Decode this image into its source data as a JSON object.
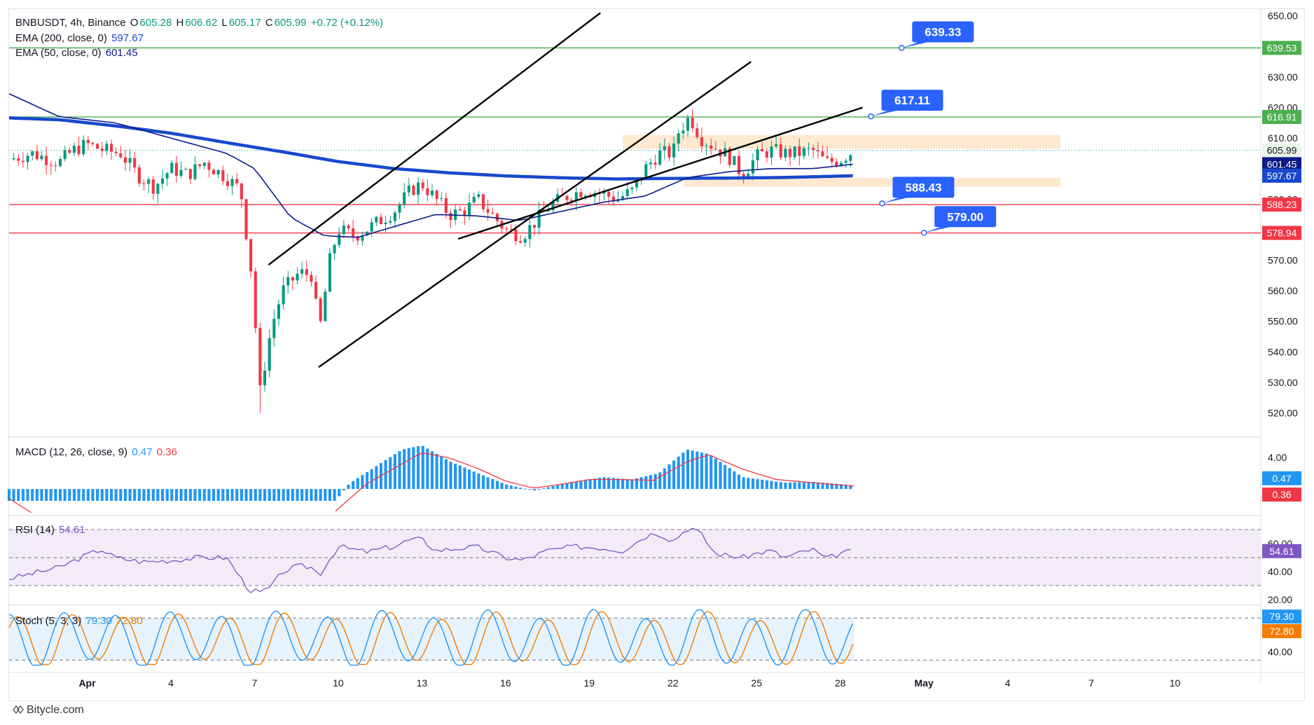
{
  "header": {
    "symbol": "BNBUSDT, 4h, Binance",
    "o_label": "O",
    "o_value": "605.28",
    "h_label": "H",
    "h_value": "606.62",
    "l_label": "L",
    "l_value": "605.17",
    "c_label": "C",
    "c_value": "605.99",
    "change": "+0.72 (+0.12%)"
  },
  "legends": {
    "ema200": "EMA (200, close, 0)",
    "ema200_value": "597.67",
    "ema50": "EMA (50, close, 0)",
    "ema50_value": "601.45",
    "macd": "MACD (12, 26, close, 9)",
    "macd_value": "0.47",
    "macd_signal_value": "0.36",
    "rsi": "RSI (14)",
    "rsi_value": "54.61",
    "stoch": "Stoch (5, 3, 3)",
    "stoch_k_value": "79.30",
    "stoch_d_value": "72.80"
  },
  "footer": {
    "brand": "Bitycle.com"
  },
  "colors": {
    "up": "#089981",
    "down": "#f23645",
    "ema200": "#1848cc",
    "ema50": "#0d1a8a",
    "resistance": "#4caf50",
    "support": "#f23645",
    "callout": "#2962ff",
    "zone": "#fbe3c4",
    "macd_hist": "#2196f3",
    "rsi": "#7e57c2",
    "stoch_k": "#2196f3",
    "stoch_d": "#f57c00"
  },
  "chart_data": {
    "type": "candlestick",
    "title": "BNBUSDT, 4h, Binance",
    "x_ticks": [
      "Apr",
      "4",
      "7",
      "10",
      "13",
      "16",
      "19",
      "22",
      "25",
      "28",
      "May",
      "4",
      "7",
      "10"
    ],
    "x_tick_days": [
      1,
      4,
      7,
      10,
      13,
      16,
      19,
      22,
      25,
      28,
      31,
      34,
      37,
      40
    ],
    "x_start_day": -1.8,
    "x_end_day": 43,
    "last_day": 28.5,
    "price_axis": {
      "ylim": [
        513,
        652
      ],
      "ticks": [
        520,
        530,
        540,
        550,
        560,
        570,
        580,
        590,
        600,
        610,
        620,
        630,
        640,
        650
      ]
    },
    "price_path": [
      [
        -1.8,
        603
      ],
      [
        -1,
        605
      ],
      [
        0,
        602
      ],
      [
        0.5,
        606
      ],
      [
        1,
        608
      ],
      [
        1.6,
        606
      ],
      [
        2.2,
        605
      ],
      [
        2.8,
        598
      ],
      [
        3.4,
        594
      ],
      [
        4,
        600
      ],
      [
        4.6,
        598
      ],
      [
        5.2,
        602
      ],
      [
        6,
        597
      ],
      [
        6.5,
        593
      ],
      [
        6.9,
        565
      ],
      [
        7.2,
        527
      ],
      [
        7.6,
        548
      ],
      [
        8,
        560
      ],
      [
        8.6,
        566
      ],
      [
        9.1,
        565
      ],
      [
        9.3,
        545
      ],
      [
        9.7,
        570
      ],
      [
        10,
        580
      ],
      [
        10.6,
        578
      ],
      [
        11,
        580
      ],
      [
        11.5,
        583
      ],
      [
        12,
        586
      ],
      [
        12.6,
        593
      ],
      [
        13,
        595
      ],
      [
        13.5,
        590
      ],
      [
        14,
        585
      ],
      [
        14.5,
        586
      ],
      [
        15,
        590
      ],
      [
        15.5,
        585
      ],
      [
        16,
        580
      ],
      [
        16.6,
        578
      ],
      [
        17,
        582
      ],
      [
        17.6,
        588
      ],
      [
        18.2,
        591
      ],
      [
        18.8,
        593
      ],
      [
        19.4,
        592
      ],
      [
        20,
        590
      ],
      [
        20.6,
        593
      ],
      [
        21,
        600
      ],
      [
        21.5,
        605
      ],
      [
        22,
        605
      ],
      [
        22.2,
        612
      ],
      [
        22.6,
        617
      ],
      [
        23,
        610
      ],
      [
        23.5,
        607
      ],
      [
        24,
        604
      ],
      [
        24.5,
        598
      ],
      [
        25,
        604
      ],
      [
        25.5,
        606
      ],
      [
        26,
        605
      ],
      [
        26.5,
        605
      ],
      [
        27,
        606
      ],
      [
        27.5,
        602
      ],
      [
        28,
        603
      ],
      [
        28.5,
        606
      ]
    ],
    "price_labels": {
      "high_day": 22.7,
      "high": 619.5,
      "low_day": 7.2,
      "low": 520
    },
    "ema200_path": [
      [
        -1.8,
        616.6
      ],
      [
        0,
        616
      ],
      [
        2,
        614
      ],
      [
        4,
        611.6
      ],
      [
        6,
        608.5
      ],
      [
        8,
        605.5
      ],
      [
        10,
        602.3
      ],
      [
        12,
        600
      ],
      [
        14,
        598.6
      ],
      [
        16,
        597.6
      ],
      [
        18,
        597
      ],
      [
        20,
        596.6
      ],
      [
        22,
        596.8
      ],
      [
        24,
        596.9
      ],
      [
        26,
        597.1
      ],
      [
        28.5,
        597.67
      ]
    ],
    "ema50_path": [
      [
        -1.8,
        624.5
      ],
      [
        0,
        617
      ],
      [
        2,
        615
      ],
      [
        4,
        610
      ],
      [
        6,
        605
      ],
      [
        7,
        600
      ],
      [
        8.3,
        584
      ],
      [
        9.5,
        578
      ],
      [
        10.7,
        577.5
      ],
      [
        12,
        581
      ],
      [
        13.5,
        585
      ],
      [
        15,
        584.5
      ],
      [
        16.5,
        583
      ],
      [
        18,
        586
      ],
      [
        19.5,
        589
      ],
      [
        21,
        591
      ],
      [
        22.5,
        597
      ],
      [
        24,
        599
      ],
      [
        25.5,
        600
      ],
      [
        27,
        600
      ],
      [
        28.5,
        601.45
      ]
    ],
    "horizontal_levels": [
      {
        "value": 639.53,
        "label": "639.53",
        "kind": "resistance"
      },
      {
        "value": 616.91,
        "label": "616.91",
        "kind": "resistance"
      },
      {
        "value": 588.23,
        "label": "588.23",
        "kind": "support"
      },
      {
        "value": 578.94,
        "label": "578.94",
        "kind": "support"
      }
    ],
    "callouts": [
      {
        "label": "639.33",
        "day": 30.2,
        "value": 639.5
      },
      {
        "label": "617.11",
        "day": 29.1,
        "value": 617.1
      },
      {
        "label": "588.43",
        "day": 29.5,
        "value": 588.6
      },
      {
        "label": "579.00",
        "day": 31.0,
        "value": 579.0
      }
    ],
    "price_badges": [
      {
        "label": "605.99",
        "value": 605.99,
        "kind": "current"
      },
      {
        "label": "601.45",
        "value": 601.45,
        "kind": "ema50"
      },
      {
        "label": "597.67",
        "value": 597.67,
        "kind": "ema200"
      }
    ],
    "trendlines": [
      {
        "from": [
          7.5,
          568.5
        ],
        "to": [
          19.4,
          651
        ]
      },
      {
        "from": [
          9.3,
          535
        ],
        "to": [
          24.8,
          635
        ]
      },
      {
        "from": [
          14.3,
          577
        ],
        "to": [
          28.8,
          620
        ]
      }
    ],
    "zones": [
      {
        "from_day": 20.2,
        "to_day": 35.9,
        "low": 606.5,
        "high": 611
      },
      {
        "from_day": 22.4,
        "to_day": 35.9,
        "low": 594,
        "high": 597
      }
    ],
    "macd": {
      "ylim": [
        -3,
        6.2
      ],
      "ticks": [
        4.0
      ],
      "hist_path": [
        [
          -1.8,
          -1.5
        ],
        [
          6,
          -1.5
        ],
        [
          8,
          -1.5
        ],
        [
          9.9,
          -1.5
        ],
        [
          10.4,
          0.7
        ],
        [
          11.5,
          3.2
        ],
        [
          12.3,
          5.0
        ],
        [
          13,
          5.5
        ],
        [
          14,
          3.5
        ],
        [
          15,
          2.0
        ],
        [
          16,
          0.6
        ],
        [
          17,
          -0.2
        ],
        [
          18,
          0.6
        ],
        [
          19.5,
          1.5
        ],
        [
          20.5,
          1.2
        ],
        [
          21.5,
          2.0
        ],
        [
          22.5,
          5.0
        ],
        [
          23.3,
          4.4
        ],
        [
          24.5,
          1.5
        ],
        [
          26,
          0.8
        ],
        [
          27,
          0.9
        ],
        [
          28.5,
          0.47
        ]
      ],
      "signal_path": [
        [
          9.9,
          -2.8
        ],
        [
          11,
          0.6
        ],
        [
          12,
          2.6
        ],
        [
          13,
          4.6
        ],
        [
          14,
          3.9
        ],
        [
          15,
          2.6
        ],
        [
          16,
          1.0
        ],
        [
          17,
          0.1
        ],
        [
          18,
          0.6
        ],
        [
          19,
          1.2
        ],
        [
          20,
          1.2
        ],
        [
          21.3,
          1.1
        ],
        [
          22.6,
          3.6
        ],
        [
          23.3,
          4.3
        ],
        [
          24.5,
          2.5
        ],
        [
          25.7,
          1.2
        ],
        [
          27,
          0.8
        ],
        [
          28.5,
          0.36
        ]
      ],
      "badges": [
        {
          "label": "0.47",
          "value": 0.47
        },
        {
          "label": "0.36",
          "value": 0.36
        }
      ]
    },
    "rsi": {
      "ylim": [
        18,
        78
      ],
      "ticks": [
        20.0,
        40.0,
        60.0
      ],
      "bands": [
        30,
        50,
        70
      ],
      "path": [
        [
          -1.8,
          35
        ],
        [
          0,
          43
        ],
        [
          1,
          52
        ],
        [
          1.5,
          56
        ],
        [
          2,
          50
        ],
        [
          3,
          47
        ],
        [
          4,
          48
        ],
        [
          5,
          50
        ],
        [
          6,
          50
        ],
        [
          6.8,
          27
        ],
        [
          7.2,
          25
        ],
        [
          7.6,
          29
        ],
        [
          8,
          40
        ],
        [
          8.6,
          44
        ],
        [
          9.1,
          43
        ],
        [
          9.3,
          37
        ],
        [
          10,
          58
        ],
        [
          11,
          54
        ],
        [
          12,
          58
        ],
        [
          12.6,
          63
        ],
        [
          13,
          63
        ],
        [
          13.5,
          55
        ],
        [
          14.5,
          57
        ],
        [
          15,
          57.5
        ],
        [
          16,
          50
        ],
        [
          16.6,
          48
        ],
        [
          17.5,
          55
        ],
        [
          18.5,
          58
        ],
        [
          19.4,
          57
        ],
        [
          20.2,
          55
        ],
        [
          21,
          65
        ],
        [
          21.4,
          68
        ],
        [
          22,
          62
        ],
        [
          22.6,
          72
        ],
        [
          23,
          67
        ],
        [
          23.5,
          53
        ],
        [
          24.5,
          50
        ],
        [
          25,
          53
        ],
        [
          25.5,
          55
        ],
        [
          26,
          50
        ],
        [
          27,
          56
        ],
        [
          27.5,
          49
        ],
        [
          28,
          53
        ],
        [
          28.5,
          54.61
        ]
      ],
      "badges": [
        {
          "label": "54.61",
          "value": 54.61
        }
      ]
    },
    "stoch": {
      "ylim": [
        22,
        92
      ],
      "ticks": [
        40.0
      ],
      "bands": [
        30,
        80
      ],
      "k_period_days": 1.9,
      "k_final": 79.3,
      "d_final": 72.8,
      "badges": [
        {
          "label": "79.30",
          "value": 79.3
        },
        {
          "label": "72.80",
          "value": 72.8
        }
      ]
    }
  }
}
